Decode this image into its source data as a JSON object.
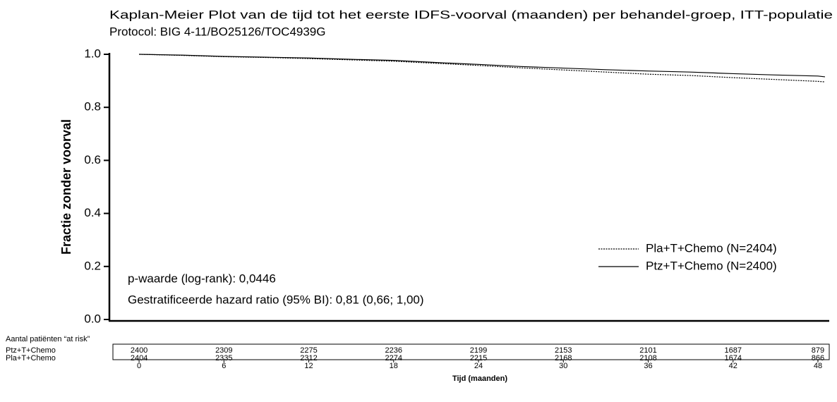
{
  "chart_data": {
    "type": "line",
    "title": "Kaplan-Meier Plot van de tijd tot het eerste IDFS-voorval (maanden) per behandel-groep, ITT-populatie",
    "subtitle": "Protocol: BIG 4-11/BO25126/TOC4939G",
    "y_label": "Fractie zonder voorval",
    "x_label": "Tijd (maanden)",
    "x": [
      0,
      3,
      6,
      9,
      12,
      15,
      18,
      21,
      24,
      27,
      30,
      33,
      36,
      39,
      42,
      45,
      48,
      48.5
    ],
    "series": [
      {
        "name": "Pla+T+Chemo (N=2404)",
        "color": "#000000",
        "dash": true,
        "values": [
          1.0,
          0.996,
          0.991,
          0.988,
          0.984,
          0.979,
          0.974,
          0.966,
          0.958,
          0.949,
          0.941,
          0.933,
          0.925,
          0.92,
          0.912,
          0.905,
          0.898,
          0.896
        ]
      },
      {
        "name": "Ptz+T+Chemo (N=2400)",
        "color": "#000000",
        "dash": false,
        "values": [
          1.0,
          0.997,
          0.992,
          0.989,
          0.986,
          0.981,
          0.977,
          0.969,
          0.962,
          0.954,
          0.948,
          0.942,
          0.937,
          0.933,
          0.927,
          0.922,
          0.918,
          0.915
        ]
      }
    ],
    "xlim": [
      -2.1,
      48.8
    ],
    "xticks": [
      0,
      6,
      12,
      18,
      24,
      30,
      36,
      42,
      48
    ],
    "ylim": [
      0,
      1
    ],
    "yticks": [
      {
        "value": 0,
        "label": "0.0"
      },
      0.2,
      0.4,
      0.6,
      0.8,
      {
        "value": 1,
        "label": "1.0"
      }
    ],
    "grid": false,
    "legend": "lower right",
    "annotations": [
      "p-waarde (log-rank): 0,0446",
      "Gestratificeerde  hazard ratio (95% BI): 0,81 (0,66; 1,00)"
    ],
    "risk_table": {
      "title": "Aantal patiënten “at risk”",
      "rows": [
        {
          "label": "Ptz+T+Chemo",
          "values": [
            2400,
            2309,
            2275,
            2236,
            2199,
            2153,
            2101,
            1687,
            879
          ]
        },
        {
          "label": "Pla+T+Chemo",
          "values": [
            2404,
            2335,
            2312,
            2274,
            2215,
            2168,
            2108,
            1674,
            866
          ]
        }
      ]
    }
  }
}
